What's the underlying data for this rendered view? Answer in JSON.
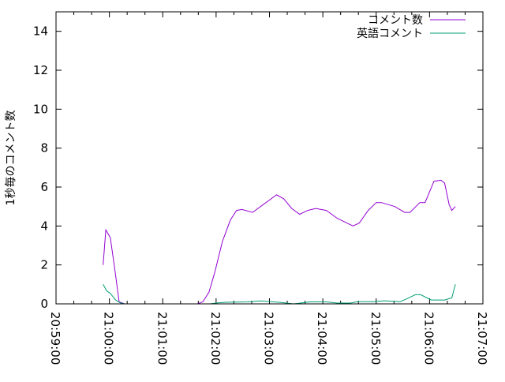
{
  "chart_data": {
    "type": "line",
    "title": "",
    "xlabel": "",
    "ylabel": "1秒毎のコメント数",
    "xlim": [
      "20:59:00",
      "21:07:00"
    ],
    "ylim": [
      0,
      15
    ],
    "x_ticks": [
      "20:59:00",
      "21:00:00",
      "21:01:00",
      "21:02:00",
      "21:03:00",
      "21:04:00",
      "21:05:00",
      "21:06:00",
      "21:07:00"
    ],
    "y_ticks": [
      0,
      2,
      4,
      6,
      8,
      10,
      12,
      14
    ],
    "grid": false,
    "legend_position": "top-right",
    "series": [
      {
        "name": "コメント数",
        "color": "#9400d3",
        "points": [
          [
            "20:59:53",
            2.0
          ],
          [
            "20:59:56",
            3.8
          ],
          [
            "21:00:01",
            3.4
          ],
          [
            "21:00:06",
            1.8
          ],
          [
            "21:00:11",
            0.1
          ],
          [
            "21:00:17",
            0
          ],
          null,
          [
            "21:01:39",
            0
          ],
          [
            "21:01:45",
            0.1
          ],
          [
            "21:01:52",
            0.6
          ],
          [
            "21:01:59",
            1.7
          ],
          [
            "21:02:07",
            3.2
          ],
          [
            "21:02:16",
            4.3
          ],
          [
            "21:02:23",
            4.8
          ],
          [
            "21:02:29",
            4.85
          ],
          [
            "21:02:41",
            4.7
          ],
          [
            "21:02:53",
            5.1
          ],
          [
            "21:03:08",
            5.6
          ],
          [
            "21:03:16",
            5.4
          ],
          [
            "21:03:25",
            4.9
          ],
          [
            "21:03:34",
            4.6
          ],
          [
            "21:03:43",
            4.8
          ],
          [
            "21:03:52",
            4.9
          ],
          [
            "21:04:04",
            4.8
          ],
          [
            "21:04:16",
            4.4
          ],
          [
            "21:04:25",
            4.2
          ],
          [
            "21:04:34",
            4.0
          ],
          [
            "21:04:41",
            4.15
          ],
          [
            "21:04:51",
            4.8
          ],
          [
            "21:05:00",
            5.2
          ],
          [
            "21:05:06",
            5.2
          ],
          [
            "21:05:21",
            5.0
          ],
          [
            "21:05:32",
            4.7
          ],
          [
            "21:05:38",
            4.7
          ],
          [
            "21:05:49",
            5.2
          ],
          [
            "21:05:55",
            5.2
          ],
          [
            "21:06:05",
            6.3
          ],
          [
            "21:06:13",
            6.35
          ],
          [
            "21:06:17",
            6.2
          ],
          [
            "21:06:22",
            5.1
          ],
          [
            "21:06:25",
            4.8
          ],
          [
            "21:06:29",
            5.0
          ]
        ]
      },
      {
        "name": "英語コメント",
        "color": "#009e73",
        "points": [
          [
            "20:59:53",
            1.0
          ],
          [
            "20:59:57",
            0.67
          ],
          [
            "21:00:01",
            0.54
          ],
          [
            "21:00:07",
            0.2
          ],
          [
            "21:00:13",
            0.03
          ],
          [
            "21:00:17",
            0
          ],
          null,
          [
            "21:01:53",
            0
          ],
          [
            "21:02:02",
            0.05
          ],
          [
            "21:02:11",
            0.08
          ],
          [
            "21:02:35",
            0.1
          ],
          [
            "21:02:50",
            0.15
          ],
          [
            "21:03:11",
            0.08
          ],
          [
            "21:03:27",
            0
          ],
          [
            "21:03:46",
            0.1
          ],
          [
            "21:04:04",
            0.1
          ],
          [
            "21:04:16",
            0.04
          ],
          [
            "21:04:31",
            0.04
          ],
          [
            "21:04:39",
            0.11
          ],
          [
            "21:04:57",
            0.11
          ],
          [
            "21:05:09",
            0.16
          ],
          [
            "21:05:27",
            0.11
          ],
          [
            "21:05:35",
            0.27
          ],
          [
            "21:05:44",
            0.47
          ],
          [
            "21:05:50",
            0.47
          ],
          [
            "21:06:02",
            0.2
          ],
          [
            "21:06:17",
            0.2
          ],
          [
            "21:06:25",
            0.31
          ],
          [
            "21:06:29",
            1.0
          ]
        ]
      }
    ]
  }
}
